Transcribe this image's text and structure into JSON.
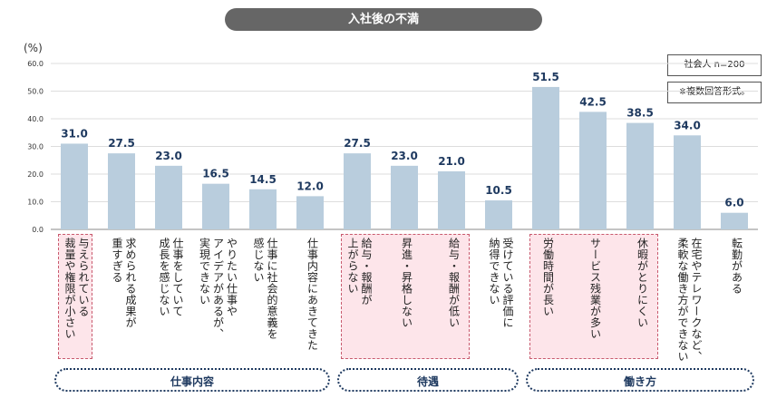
{
  "chart_data": {
    "type": "bar",
    "title": "入社後の不満",
    "ylabel": "(%)",
    "ylim": [
      0,
      60
    ],
    "yticks": [
      "0.0",
      "10.0",
      "20.0",
      "30.0",
      "40.0",
      "50.0",
      "60.0"
    ],
    "grid": true,
    "categories": [
      "与えられている\n裁量や権限が小さい",
      "求められる成果が\n重すぎる",
      "仕事をしていて\n成長を感じない",
      "やりたい仕事や\nアイデアがあるが、\n実現できない",
      "仕事に社会的意義を\n感じない",
      "仕事内容にあきてきた",
      "給与・報酬が\n上がらない",
      "昇進・昇格しない",
      "給与・報酬が低い",
      "受けている評価に\n納得できない",
      "労働時間が長い",
      "サービス残業が多い",
      "休暇がとりにくい",
      "在宅やテレワークなど、\n柔軟な働き方ができない",
      "転勤がある"
    ],
    "values": [
      31.0,
      27.5,
      23.0,
      16.5,
      14.5,
      12.0,
      27.5,
      23.0,
      21.0,
      10.5,
      51.5,
      42.5,
      38.5,
      34.0,
      6.0
    ],
    "value_labels": [
      "31.0",
      "27.5",
      "23.0",
      "16.5",
      "14.5",
      "12.0",
      "27.5",
      "23.0",
      "21.0",
      "10.5",
      "51.5",
      "42.5",
      "38.5",
      "34.0",
      "6.0"
    ],
    "highlighted": [
      0,
      6,
      7,
      8,
      10,
      11,
      12
    ],
    "groups": [
      {
        "name": "仕事内容",
        "from": 0,
        "to": 5
      },
      {
        "name": "待遇",
        "from": 6,
        "to": 9
      },
      {
        "name": "働き方",
        "from": 10,
        "to": 14
      }
    ],
    "bar_color": "#b9cddd",
    "value_label_color": "#1f3a60",
    "highlight_fill": "#fde5ea",
    "highlight_border": "#c85a6e",
    "group_color": "#1f3a60"
  },
  "notes": [
    "社会人 n=200",
    "※複数回答形式。"
  ]
}
